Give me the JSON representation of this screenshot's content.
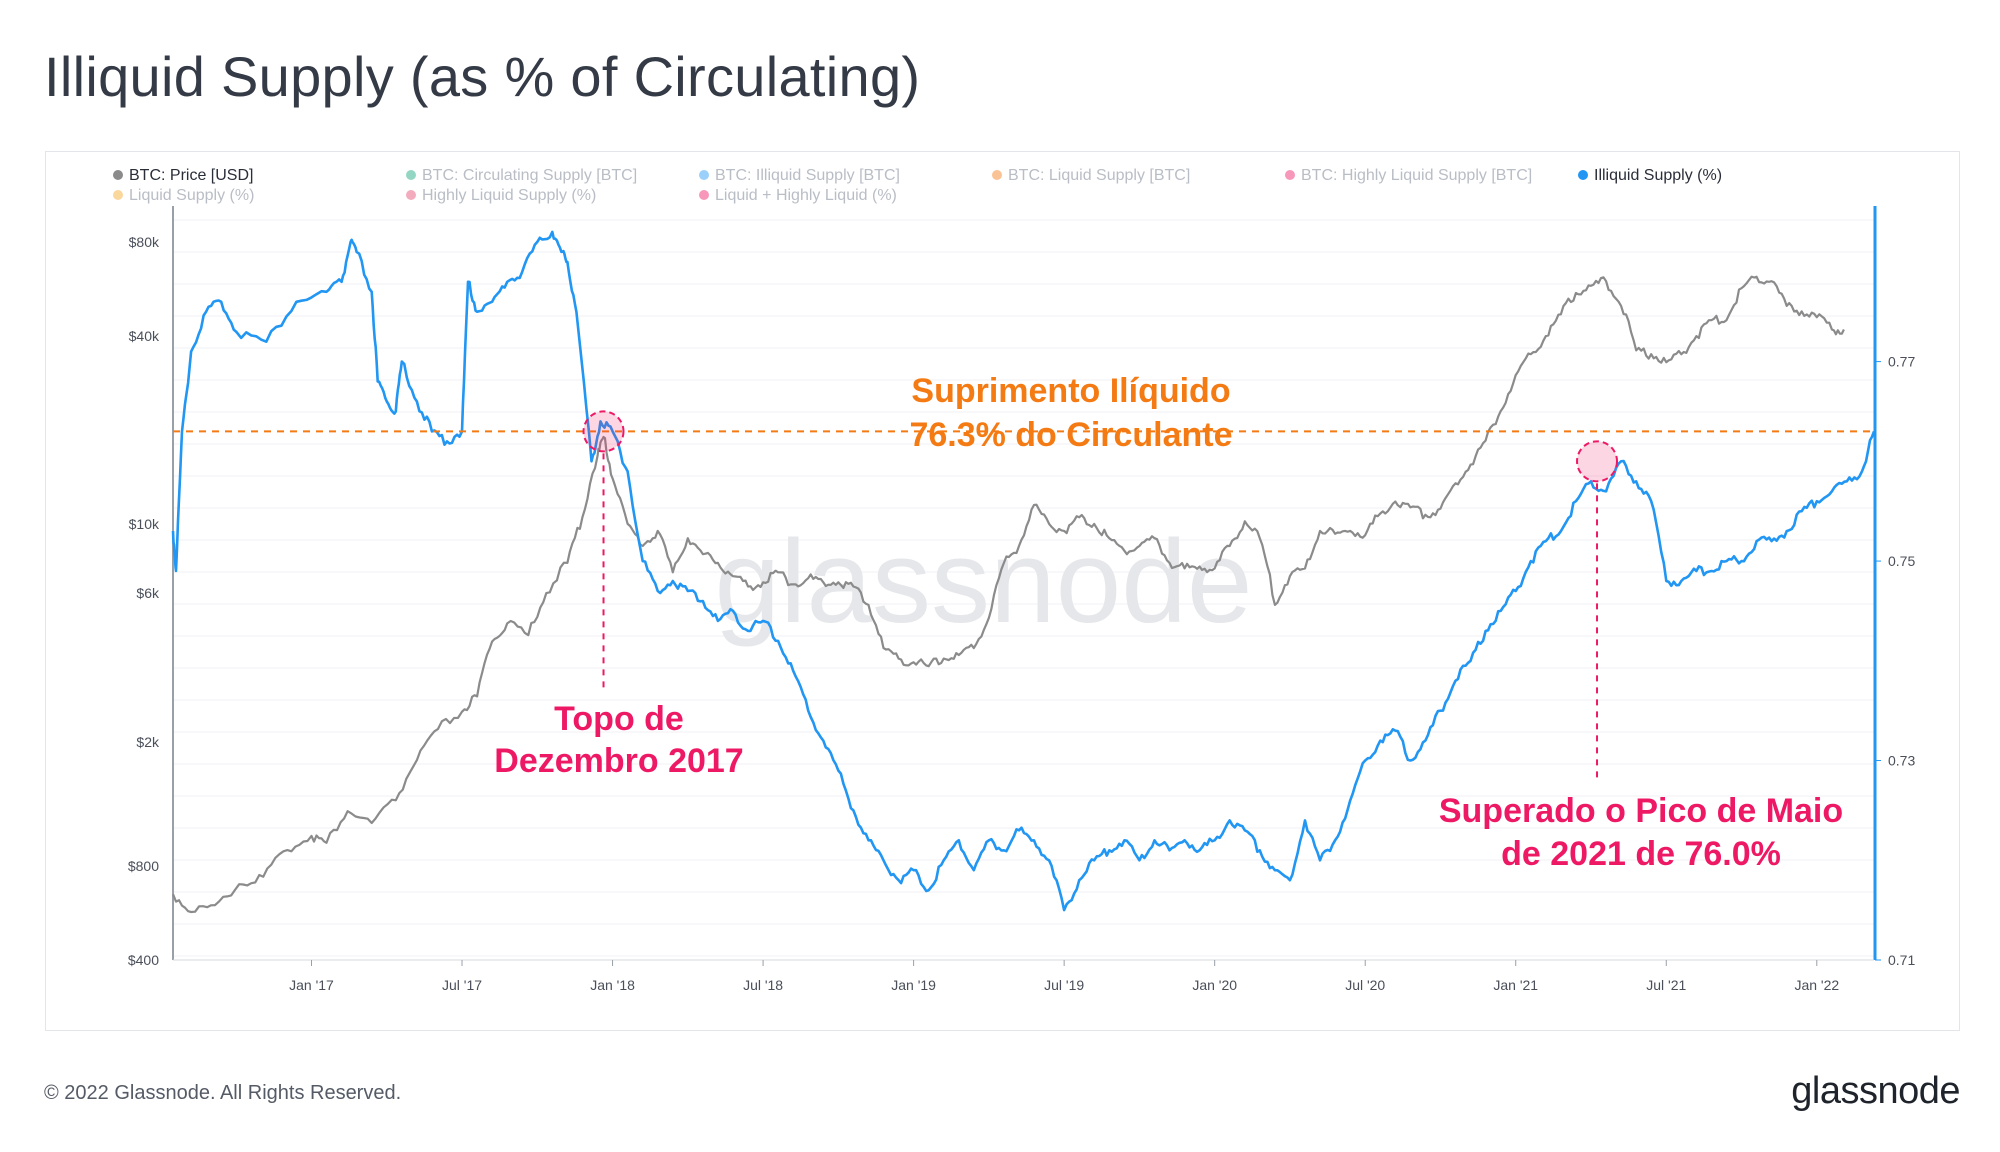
{
  "title": "Illiquid Supply (as % of Circulating)",
  "footer": {
    "copyright": "© 2022 Glassnode. All Rights Reserved.",
    "brand": "glassnode"
  },
  "colors": {
    "price": "#8b8b8b",
    "illiquid_pct": "#2196f3",
    "threshold": "#f47b14",
    "highlight": "#ee1965"
  },
  "chart_data": {
    "type": "line",
    "watermark": "glassnode",
    "legend": [
      {
        "label": "BTC: Price [USD]",
        "color": "#8b8b8b",
        "active": true
      },
      {
        "label": "BTC: Circulating Supply [BTC]",
        "color": "#10a37a",
        "active": false
      },
      {
        "label": "BTC: Illiquid Supply [BTC]",
        "color": "#2196f3",
        "active": false
      },
      {
        "label": "BTC: Liquid Supply [BTC]",
        "color": "#f47b14",
        "active": false
      },
      {
        "label": "BTC: Highly Liquid Supply [BTC]",
        "color": "#ee1965",
        "active": false
      },
      {
        "label": "Illiquid Supply (%)",
        "color": "#2196f3",
        "active": true
      },
      {
        "label": "Liquid Supply (%)",
        "color": "#f5a623",
        "active": false
      },
      {
        "label": "Highly Liquid Supply (%)",
        "color": "#e2486f",
        "active": false
      },
      {
        "label": "Liquid + Highly Liquid (%)",
        "color": "#ee1965",
        "active": false
      }
    ],
    "x_ticks": [
      "Jan '17",
      "Jul '17",
      "Jan '18",
      "Jul '18",
      "Jan '19",
      "Jul '19",
      "Jan '20",
      "Jul '20",
      "Jan '21",
      "Jul '21",
      "Jan '22"
    ],
    "x_tick_t": [
      2017.0,
      2017.5,
      2018.0,
      2018.5,
      2019.0,
      2019.5,
      2020.0,
      2020.5,
      2021.0,
      2021.5,
      2022.0
    ],
    "x_range": [
      2016.54,
      2022.19
    ],
    "y_left": {
      "label": "BTC: Price [USD]",
      "scale": "log",
      "range": [
        400,
        100000
      ],
      "ticks": [
        400,
        800,
        2000,
        6000,
        10000,
        40000,
        80000
      ],
      "tick_labels": [
        "$400",
        "$800",
        "$2k",
        "$6k",
        "$10k",
        "$40k",
        "$80k"
      ]
    },
    "y_right": {
      "label": "Illiquid Supply (%)",
      "scale": "linear",
      "range": [
        0.71,
        0.785
      ],
      "ticks": [
        0.71,
        0.73,
        0.75,
        0.77
      ],
      "tick_labels": [
        "0.71",
        "0.73",
        "0.75",
        "0.77"
      ]
    },
    "series": [
      {
        "name": "BTC: Price [USD]",
        "axis": "left",
        "x": [
          2016.54,
          2016.6,
          2016.68,
          2016.76,
          2016.84,
          2016.92,
          2017.0,
          2017.05,
          2017.12,
          2017.2,
          2017.28,
          2017.35,
          2017.42,
          2017.5,
          2017.55,
          2017.6,
          2017.65,
          2017.72,
          2017.78,
          2017.85,
          2017.9,
          2017.95,
          2017.97,
          2018.0,
          2018.05,
          2018.1,
          2018.15,
          2018.2,
          2018.25,
          2018.3,
          2018.35,
          2018.4,
          2018.45,
          2018.5,
          2018.55,
          2018.6,
          2018.65,
          2018.7,
          2018.75,
          2018.8,
          2018.85,
          2018.9,
          2018.95,
          2019.0,
          2019.05,
          2019.1,
          2019.15,
          2019.2,
          2019.25,
          2019.3,
          2019.35,
          2019.4,
          2019.45,
          2019.5,
          2019.55,
          2019.6,
          2019.65,
          2019.7,
          2019.75,
          2019.8,
          2019.85,
          2019.9,
          2019.95,
          2020.0,
          2020.05,
          2020.1,
          2020.15,
          2020.2,
          2020.25,
          2020.3,
          2020.35,
          2020.4,
          2020.45,
          2020.5,
          2020.55,
          2020.6,
          2020.65,
          2020.7,
          2020.75,
          2020.8,
          2020.85,
          2020.9,
          2020.95,
          2021.0,
          2021.05,
          2021.1,
          2021.15,
          2021.2,
          2021.25,
          2021.3,
          2021.35,
          2021.4,
          2021.45,
          2021.5,
          2021.55,
          2021.6,
          2021.65,
          2021.7,
          2021.75,
          2021.8,
          2021.85,
          2021.9,
          2021.95,
          2022.0,
          2022.05,
          2022.09
        ],
        "values": [
          650,
          570,
          600,
          700,
          740,
          900,
          1000,
          950,
          1200,
          1100,
          1300,
          1750,
          2200,
          2500,
          2800,
          4200,
          4800,
          4400,
          6000,
          7500,
          10500,
          16500,
          19000,
          14000,
          10000,
          8500,
          9500,
          7000,
          9000,
          8000,
          7500,
          6800,
          6300,
          6500,
          7000,
          6400,
          6700,
          6500,
          6500,
          6300,
          5500,
          4000,
          3700,
          3600,
          3500,
          3700,
          3800,
          4000,
          5000,
          7500,
          8500,
          11500,
          10000,
          9500,
          10500,
          10000,
          9000,
          8200,
          8500,
          9000,
          7500,
          7200,
          7300,
          7200,
          8500,
          10200,
          9000,
          5500,
          6800,
          7200,
          9500,
          9300,
          9500,
          9200,
          10800,
          11800,
          11300,
          10700,
          11200,
          13500,
          15500,
          18500,
          23000,
          30000,
          35000,
          40000,
          47000,
          55000,
          58000,
          60000,
          50000,
          36000,
          35000,
          33000,
          35000,
          40000,
          45000,
          45000,
          57000,
          62000,
          60000,
          50000,
          48000,
          46000,
          42000,
          42000
        ]
      },
      {
        "name": "Illiquid Supply (%)",
        "axis": "right",
        "x": [
          2016.54,
          2016.55,
          2016.57,
          2016.6,
          2016.65,
          2016.7,
          2016.75,
          2016.85,
          2016.95,
          2017.05,
          2017.1,
          2017.13,
          2017.15,
          2017.2,
          2017.22,
          2017.25,
          2017.28,
          2017.3,
          2017.35,
          2017.4,
          2017.45,
          2017.5,
          2017.52,
          2017.55,
          2017.6,
          2017.65,
          2017.7,
          2017.75,
          2017.8,
          2017.83,
          2017.85,
          2017.88,
          2017.93,
          2017.96,
          2018.0,
          2018.05,
          2018.1,
          2018.15,
          2018.2,
          2018.25,
          2018.3,
          2018.35,
          2018.4,
          2018.45,
          2018.5,
          2018.55,
          2018.6,
          2018.65,
          2018.7,
          2018.75,
          2018.8,
          2018.85,
          2018.9,
          2018.95,
          2019.0,
          2019.05,
          2019.1,
          2019.15,
          2019.2,
          2019.25,
          2019.3,
          2019.35,
          2019.4,
          2019.45,
          2019.5,
          2019.55,
          2019.6,
          2019.65,
          2019.7,
          2019.75,
          2019.8,
          2019.85,
          2019.9,
          2019.95,
          2020.0,
          2020.05,
          2020.1,
          2020.15,
          2020.2,
          2020.25,
          2020.3,
          2020.35,
          2020.4,
          2020.45,
          2020.5,
          2020.55,
          2020.6,
          2020.65,
          2020.7,
          2020.75,
          2020.8,
          2020.85,
          2020.9,
          2020.95,
          2021.0,
          2021.05,
          2021.1,
          2021.15,
          2021.2,
          2021.25,
          2021.3,
          2021.35,
          2021.4,
          2021.45,
          2021.5,
          2021.55,
          2021.6,
          2021.65,
          2021.7,
          2021.75,
          2021.8,
          2021.85,
          2021.9,
          2021.95,
          2022.0,
          2022.05,
          2022.1,
          2022.15,
          2022.19
        ],
        "values": [
          0.753,
          0.749,
          0.763,
          0.771,
          0.775,
          0.776,
          0.773,
          0.772,
          0.776,
          0.777,
          0.778,
          0.782,
          0.781,
          0.777,
          0.768,
          0.766,
          0.765,
          0.77,
          0.766,
          0.763,
          0.762,
          0.763,
          0.778,
          0.775,
          0.776,
          0.778,
          0.779,
          0.782,
          0.783,
          0.781,
          0.78,
          0.775,
          0.76,
          0.764,
          0.763,
          0.759,
          0.75,
          0.747,
          0.748,
          0.747,
          0.746,
          0.744,
          0.745,
          0.743,
          0.744,
          0.742,
          0.739,
          0.735,
          0.732,
          0.729,
          0.725,
          0.722,
          0.72,
          0.718,
          0.719,
          0.717,
          0.72,
          0.722,
          0.719,
          0.722,
          0.721,
          0.723,
          0.722,
          0.72,
          0.715,
          0.718,
          0.72,
          0.721,
          0.722,
          0.72,
          0.722,
          0.721,
          0.722,
          0.721,
          0.722,
          0.724,
          0.723,
          0.721,
          0.719,
          0.718,
          0.724,
          0.72,
          0.722,
          0.726,
          0.73,
          0.732,
          0.733,
          0.73,
          0.732,
          0.735,
          0.738,
          0.74,
          0.743,
          0.745,
          0.747,
          0.75,
          0.752,
          0.753,
          0.756,
          0.758,
          0.757,
          0.76,
          0.758,
          0.756,
          0.748,
          0.748,
          0.749,
          0.749,
          0.75,
          0.75,
          0.752,
          0.752,
          0.753,
          0.755,
          0.756,
          0.757,
          0.758,
          0.759,
          0.763
        ]
      }
    ],
    "threshold": {
      "axis": "right",
      "value": 0.763
    },
    "annotations": {
      "threshold_line1": "Suprimento Ilíquido",
      "threshold_line2": "76.3% do Circulante",
      "top2017_line1": "Topo de",
      "top2017_line2": "Dezembro 2017",
      "may2021_line1": "Superado o Pico de Maio",
      "may2021_line2": "de 2021 de 76.0%"
    },
    "highlight_points": [
      {
        "name": "dec-2017-top",
        "x": 2017.97,
        "axis": "right",
        "value": 0.763
      },
      {
        "name": "may-2021-peak",
        "x": 2021.27,
        "axis": "right",
        "value": 0.76
      }
    ]
  }
}
